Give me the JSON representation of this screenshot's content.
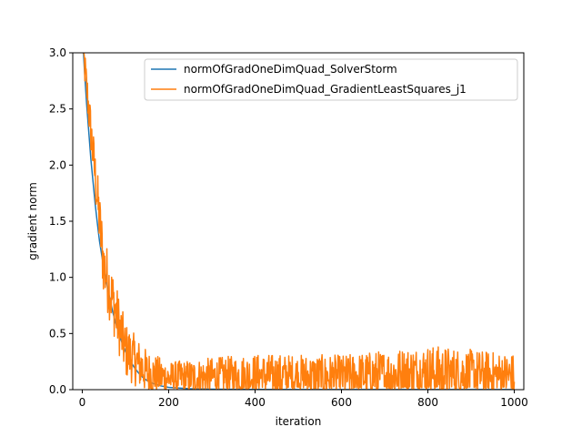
{
  "chart_data": {
    "type": "line",
    "xlabel": "iteration",
    "ylabel": "gradient norm",
    "xlim": [
      -22,
      1022
    ],
    "ylim": [
      0,
      3.0
    ],
    "xticks": [
      0,
      200,
      400,
      600,
      800,
      1000
    ],
    "xtick_labels": [
      "0",
      "200",
      "400",
      "600",
      "800",
      "1000"
    ],
    "yticks": [
      0.0,
      0.5,
      1.0,
      1.5,
      2.0,
      2.5,
      3.0
    ],
    "ytick_labels": [
      "0.0",
      "0.5",
      "1.0",
      "1.5",
      "2.0",
      "2.5",
      "3.0"
    ],
    "grid": false,
    "legend_position": "top-right",
    "series": [
      {
        "name": "normOfGradOneDimQuad_SolverStorm",
        "color": "#1f77b4",
        "x": [
          0,
          5,
          10,
          15,
          20,
          25,
          30,
          35,
          40,
          50,
          60,
          70,
          80,
          90,
          100,
          110,
          120,
          130,
          140,
          150,
          160,
          180,
          200,
          250,
          300,
          400,
          500,
          600,
          700,
          800,
          900,
          1000
        ],
        "y": [
          3.2,
          2.85,
          2.55,
          2.3,
          2.05,
          1.85,
          1.65,
          1.48,
          1.32,
          1.08,
          0.88,
          0.7,
          0.56,
          0.44,
          0.34,
          0.26,
          0.2,
          0.15,
          0.11,
          0.08,
          0.06,
          0.035,
          0.02,
          0.008,
          0.004,
          0.002,
          0.001,
          0.001,
          0.001,
          0.001,
          0.001,
          0.001
        ]
      },
      {
        "name": "normOfGradOneDimQuad_GradientLeastSquares_j1",
        "color": "#ff7f0e",
        "noise_envelope": [
          {
            "x": 0,
            "center": 3.1,
            "spread": 0.15
          },
          {
            "x": 50,
            "center": 1.1,
            "spread": 0.3
          },
          {
            "x": 100,
            "center": 0.35,
            "spread": 0.25
          },
          {
            "x": 150,
            "center": 0.15,
            "spread": 0.2
          },
          {
            "x": 200,
            "center": 0.1,
            "spread": 0.15
          },
          {
            "x": 400,
            "center": 0.12,
            "spread": 0.2
          },
          {
            "x": 600,
            "center": 0.11,
            "spread": 0.2
          },
          {
            "x": 800,
            "center": 0.15,
            "spread": 0.25
          },
          {
            "x": 1000,
            "center": 0.12,
            "spread": 0.2
          }
        ]
      }
    ]
  }
}
